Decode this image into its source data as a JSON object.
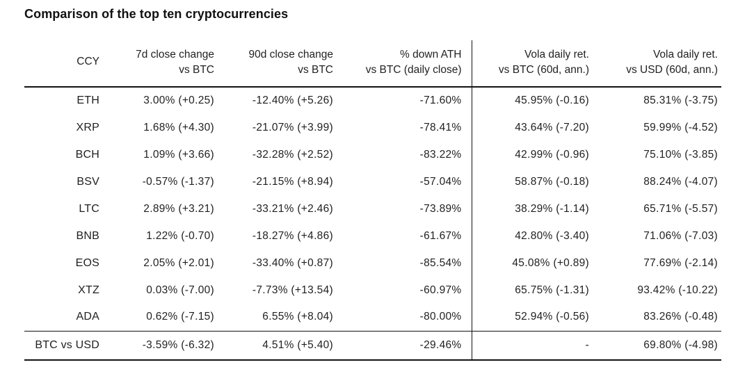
{
  "title": "Comparison of the top ten cryptocurrencies",
  "chart_data": {
    "type": "table",
    "title": "Comparison of the top ten cryptocurrencies",
    "header": {
      "ccy": "CCY",
      "d7_line1": "7d close change",
      "d7_line2": "vs BTC",
      "d90_line1": "90d close change",
      "d90_line2": "vs BTC",
      "ath_line1": "% down ATH",
      "ath_line2": "vs BTC (daily close)",
      "vola_btc_line1": "Vola daily ret.",
      "vola_btc_line2": "vs BTC (60d, ann.)",
      "vola_usd_line1": "Vola daily ret.",
      "vola_usd_line2": "vs USD (60d, ann.)"
    },
    "rows": [
      {
        "ccy": "ETH",
        "d7": "3.00% (+0.25)",
        "d90": "-12.40% (+5.26)",
        "ath": "-71.60%",
        "vola_btc": "45.95% (-0.16)",
        "vola_usd": "85.31% (-3.75)"
      },
      {
        "ccy": "XRP",
        "d7": "1.68% (+4.30)",
        "d90": "-21.07% (+3.99)",
        "ath": "-78.41%",
        "vola_btc": "43.64% (-7.20)",
        "vola_usd": "59.99% (-4.52)"
      },
      {
        "ccy": "BCH",
        "d7": "1.09% (+3.66)",
        "d90": "-32.28% (+2.52)",
        "ath": "-83.22%",
        "vola_btc": "42.99% (-0.96)",
        "vola_usd": "75.10% (-3.85)"
      },
      {
        "ccy": "BSV",
        "d7": "-0.57% (-1.37)",
        "d90": "-21.15% (+8.94)",
        "ath": "-57.04%",
        "vola_btc": "58.87% (-0.18)",
        "vola_usd": "88.24% (-4.07)"
      },
      {
        "ccy": "LTC",
        "d7": "2.89% (+3.21)",
        "d90": "-33.21% (+2.46)",
        "ath": "-73.89%",
        "vola_btc": "38.29% (-1.14)",
        "vola_usd": "65.71% (-5.57)"
      },
      {
        "ccy": "BNB",
        "d7": "1.22% (-0.70)",
        "d90": "-18.27% (+4.86)",
        "ath": "-61.67%",
        "vola_btc": "42.80% (-3.40)",
        "vola_usd": "71.06% (-7.03)"
      },
      {
        "ccy": "EOS",
        "d7": "2.05% (+2.01)",
        "d90": "-33.40% (+0.87)",
        "ath": "-85.54%",
        "vola_btc": "45.08% (+0.89)",
        "vola_usd": "77.69% (-2.14)"
      },
      {
        "ccy": "XTZ",
        "d7": "0.03% (-7.00)",
        "d90": "-7.73% (+13.54)",
        "ath": "-60.97%",
        "vola_btc": "65.75% (-1.31)",
        "vola_usd": "93.42% (-10.22)"
      },
      {
        "ccy": "ADA",
        "d7": "0.62% (-7.15)",
        "d90": "6.55% (+8.04)",
        "ath": "-80.00%",
        "vola_btc": "52.94% (-0.56)",
        "vola_usd": "83.26% (-0.48)"
      }
    ],
    "footer_row": {
      "ccy": "BTC vs USD",
      "d7": "-3.59% (-6.32)",
      "d90": "4.51% (+5.40)",
      "ath": "-29.46%",
      "vola_btc": "-",
      "vola_usd": "69.80% (-4.98)"
    },
    "layout": {
      "grid": "off",
      "vertical_divider_after_column": "% down ATH vs BTC (daily close)"
    }
  },
  "colors": {
    "background": "#ffffff",
    "text": "#1a1a1a",
    "line": "#111111"
  }
}
